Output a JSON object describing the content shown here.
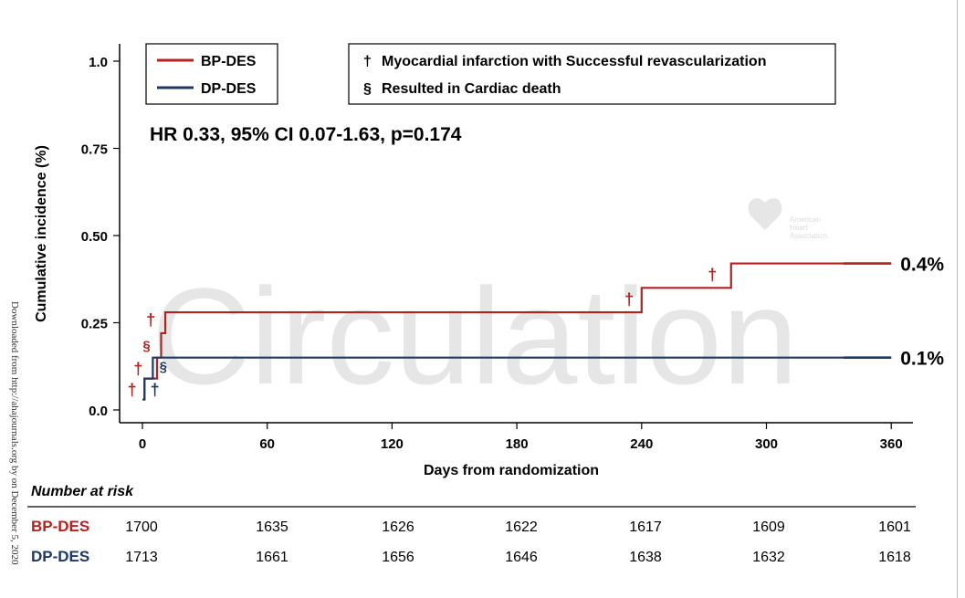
{
  "chart_data": {
    "type": "line",
    "xlabel": "Days from randomization",
    "ylabel": "Cumulative incidence (%)",
    "xlim": [
      -5,
      370
    ],
    "ylim": [
      -0.03,
      1.05
    ],
    "x_ticks": [
      0,
      60,
      120,
      180,
      240,
      300,
      360
    ],
    "y_ticks": [
      0.0,
      0.25,
      0.5,
      0.75,
      1.0
    ],
    "y_tick_labels": [
      "0.0",
      "0.25",
      "0.50",
      "0.75",
      "1.0"
    ],
    "series": [
      {
        "name": "BP-DES",
        "color": "#b22222",
        "steps": [
          [
            0,
            0.03
          ],
          [
            1,
            0.09
          ],
          [
            5,
            0.09
          ],
          [
            7,
            0.15
          ],
          [
            9,
            0.22
          ],
          [
            11,
            0.28
          ],
          [
            238,
            0.28
          ],
          [
            240,
            0.35
          ],
          [
            281,
            0.35
          ],
          [
            283,
            0.42
          ],
          [
            360,
            0.42
          ]
        ],
        "end_label": "0.4%",
        "markers": [
          {
            "x": -5,
            "y": 0.06,
            "symbol": "†"
          },
          {
            "x": -2,
            "y": 0.12,
            "symbol": "†"
          },
          {
            "x": 2,
            "y": 0.19,
            "symbol": "§"
          },
          {
            "x": 4,
            "y": 0.26,
            "symbol": "†"
          },
          {
            "x": 234,
            "y": 0.32,
            "symbol": "†"
          },
          {
            "x": 274,
            "y": 0.39,
            "symbol": "†"
          }
        ]
      },
      {
        "name": "DP-DES",
        "color": "#1f3864",
        "steps": [
          [
            0,
            0.03
          ],
          [
            1,
            0.09
          ],
          [
            4,
            0.09
          ],
          [
            5,
            0.15
          ],
          [
            360,
            0.15
          ]
        ],
        "end_label": "0.1%",
        "markers": [
          {
            "x": 6,
            "y": 0.06,
            "symbol": "†"
          },
          {
            "x": 10,
            "y": 0.13,
            "symbol": "§"
          }
        ]
      }
    ],
    "legend": {
      "position": "top-left",
      "entries": [
        "BP-DES",
        "DP-DES"
      ]
    },
    "symbol_legend": [
      {
        "symbol": "†",
        "text": "Myocardial infarction with Successful revascularization"
      },
      {
        "symbol": "§",
        "text": "Resulted in Cardiac death"
      }
    ],
    "annotation": "HR 0.33, 95% CI 0.07-1.63, p=0.174",
    "risk_table": {
      "title": "Number at risk",
      "days": [
        0,
        60,
        120,
        180,
        240,
        300,
        360
      ],
      "rows": [
        {
          "name": "BP-DES",
          "color": "#b22222",
          "values": [
            1700,
            1635,
            1626,
            1622,
            1617,
            1609,
            1601
          ]
        },
        {
          "name": "DP-DES",
          "color": "#1f3864",
          "values": [
            1713,
            1661,
            1656,
            1646,
            1638,
            1632,
            1618
          ]
        }
      ]
    },
    "grid": false
  },
  "watermark": {
    "text": "Circulation",
    "logo_lines": [
      "American",
      "Heart",
      "Association."
    ]
  },
  "side_note": "Downloaded from http://ahajournals.org by on December 5, 2020"
}
